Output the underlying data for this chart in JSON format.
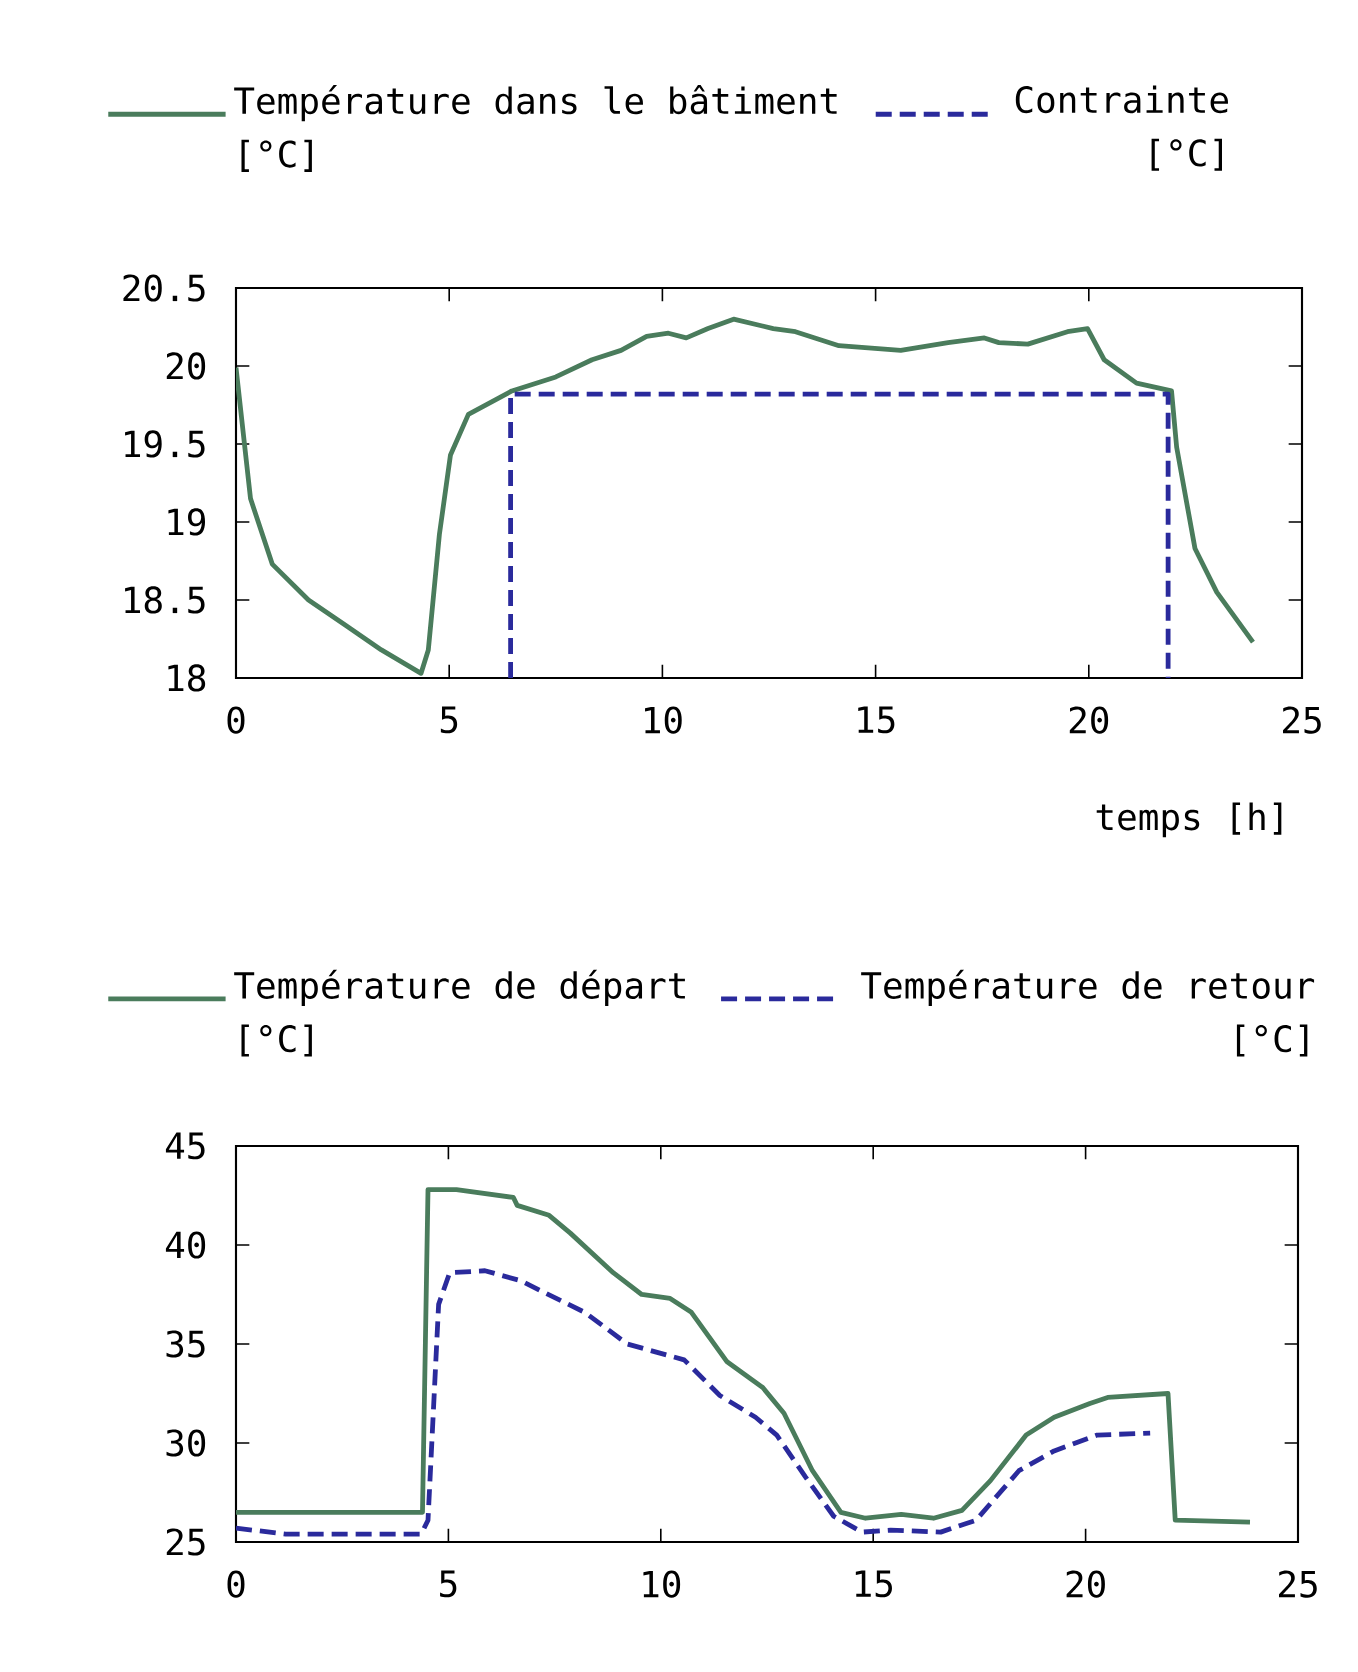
{
  "chart_data": [
    {
      "type": "line",
      "xlabel": "temps [h]",
      "xlim": [
        0,
        25
      ],
      "xticks": [
        0,
        5,
        10,
        15,
        20,
        25
      ],
      "ylim": [
        18,
        20.5
      ],
      "yticks": [
        18,
        18.5,
        19,
        19.5,
        20,
        20.5
      ],
      "legend": "top",
      "series": [
        {
          "name": "Température dans le bâtiment [°C]",
          "color": "#4a7c5c",
          "line_style": "solid",
          "x": [
            0,
            0.34,
            0.85,
            1.7,
            2.56,
            3.41,
            4.34,
            4.51,
            4.77,
            5.03,
            5.45,
            6.47,
            7.5,
            8.35,
            9.03,
            9.63,
            10.14,
            10.56,
            11.07,
            11.67,
            12.6,
            13.12,
            14.14,
            15.59,
            16.7,
            17.55,
            17.89,
            18.57,
            19.5,
            19.97,
            20.36,
            21.12,
            21.94,
            22.06,
            22.49,
            23.0,
            23.85
          ],
          "values": [
            19.99,
            19.15,
            18.73,
            18.5,
            18.34,
            18.18,
            18.03,
            18.18,
            18.92,
            19.43,
            19.69,
            19.84,
            19.93,
            20.04,
            20.1,
            20.19,
            20.21,
            20.18,
            20.24,
            20.3,
            20.24,
            20.22,
            20.13,
            20.1,
            20.15,
            20.18,
            20.15,
            20.14,
            20.22,
            20.24,
            20.04,
            19.89,
            19.84,
            19.48,
            18.83,
            18.55,
            18.23
          ]
        },
        {
          "name": "Contrainte [°C]",
          "color": "#2a2a9c",
          "line_style": "dashed",
          "x": [
            6.44,
            6.44,
            21.86,
            21.86
          ],
          "values": [
            18,
            19.82,
            19.82,
            18
          ]
        }
      ]
    },
    {
      "type": "line",
      "xlim": [
        0,
        25
      ],
      "xticks": [
        0,
        5,
        10,
        15,
        20,
        25
      ],
      "ylim": [
        25,
        45
      ],
      "yticks": [
        25,
        30,
        35,
        40,
        45
      ],
      "legend": "top",
      "series": [
        {
          "name": "Température de départ [°C]",
          "color": "#4a7c5c",
          "line_style": "solid",
          "x": [
            0,
            4.39,
            4.52,
            5.19,
            6.53,
            6.62,
            7.37,
            7.87,
            8.88,
            9.55,
            10.22,
            10.72,
            11.56,
            12.4,
            12.9,
            13.57,
            14.24,
            14.82,
            15.66,
            16.42,
            17.09,
            17.76,
            18.6,
            19.26,
            20.1,
            20.52,
            21.94,
            22.11,
            23.87
          ],
          "values": [
            26.5,
            26.5,
            42.8,
            42.8,
            42.4,
            42,
            41.5,
            40.6,
            38.6,
            37.5,
            37.3,
            36.6,
            34.1,
            32.8,
            31.5,
            28.6,
            26.5,
            26.2,
            26.4,
            26.2,
            26.6,
            28.1,
            30.4,
            31.3,
            32,
            32.3,
            32.5,
            26.1,
            26
          ]
        },
        {
          "name": "Température de retour [°C]",
          "color": "#2a2a9c",
          "line_style": "dashed",
          "x": [
            0,
            1.17,
            4.36,
            4.52,
            4.77,
            5.03,
            5.86,
            6.7,
            7.54,
            8.21,
            9.21,
            9.88,
            10.55,
            11.39,
            12.23,
            12.73,
            13.4,
            14.07,
            14.74,
            15.41,
            16.59,
            17.42,
            18.43,
            19.26,
            20.27,
            21.52
          ],
          "values": [
            25.7,
            25.4,
            25.4,
            26.1,
            37,
            38.6,
            38.7,
            38.2,
            37.3,
            36.6,
            35,
            34.6,
            34.2,
            32.4,
            31.3,
            30.4,
            28.3,
            26.3,
            25.5,
            25.6,
            25.5,
            26.1,
            28.6,
            29.6,
            30.4,
            30.5
          ]
        }
      ]
    }
  ]
}
